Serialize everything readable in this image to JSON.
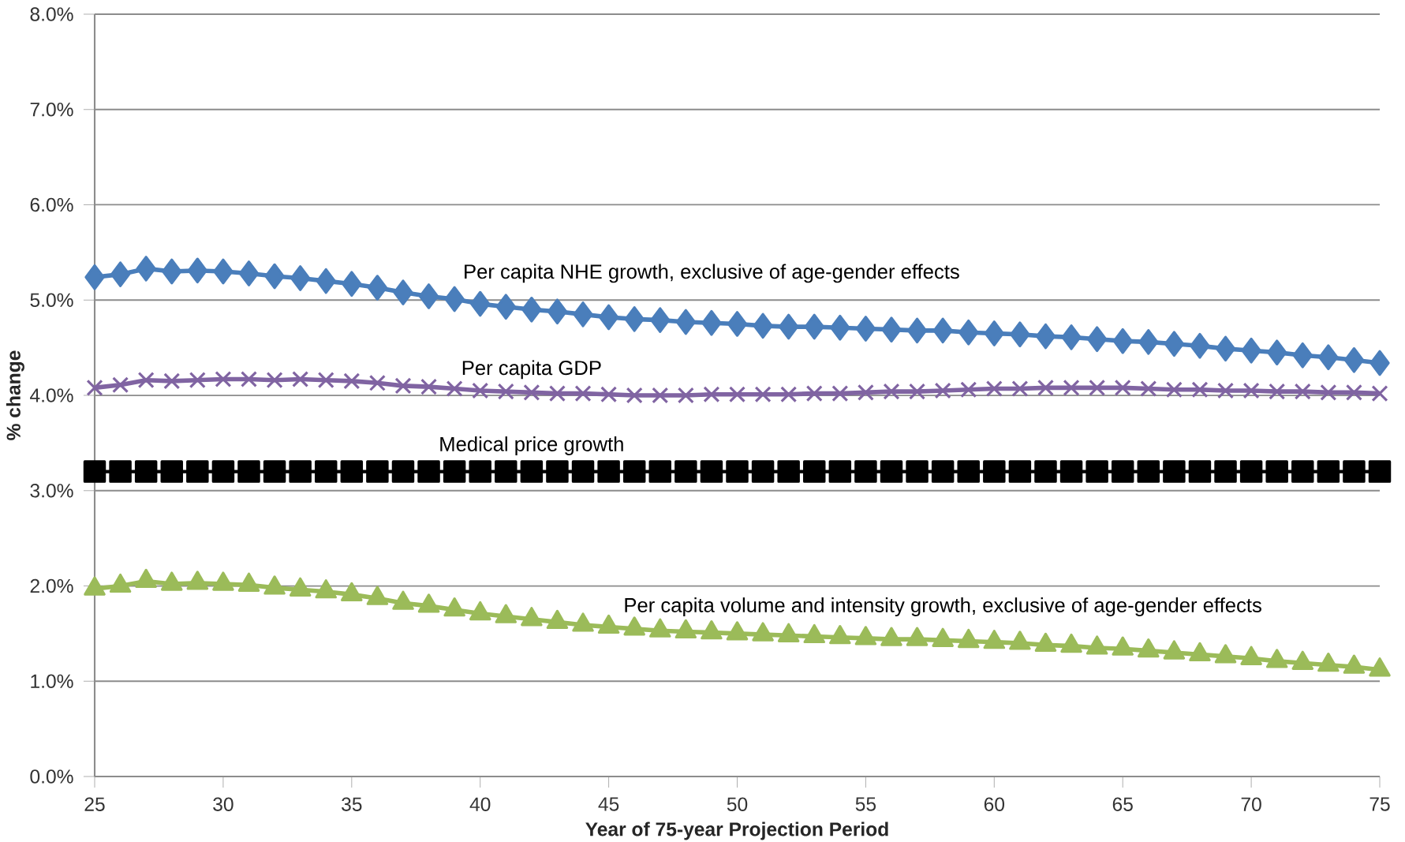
{
  "chart_data": {
    "type": "line",
    "xlabel": "Year of 75-year Projection Period",
    "ylabel": "% change",
    "x": [
      25,
      26,
      27,
      28,
      29,
      30,
      31,
      32,
      33,
      34,
      35,
      36,
      37,
      38,
      39,
      40,
      41,
      42,
      43,
      44,
      45,
      46,
      47,
      48,
      49,
      50,
      51,
      52,
      53,
      54,
      55,
      56,
      57,
      58,
      59,
      60,
      61,
      62,
      63,
      64,
      65,
      66,
      67,
      68,
      69,
      70,
      71,
      72,
      73,
      74,
      75
    ],
    "series": [
      {
        "name": "Per capita NHE growth, exclusive of age-gender effects",
        "color": "#4a7ebb",
        "marker": "diamond",
        "values": [
          5.24,
          5.27,
          5.33,
          5.3,
          5.31,
          5.3,
          5.28,
          5.25,
          5.23,
          5.2,
          5.17,
          5.13,
          5.08,
          5.04,
          5.01,
          4.96,
          4.93,
          4.9,
          4.88,
          4.85,
          4.82,
          4.8,
          4.79,
          4.77,
          4.76,
          4.75,
          4.73,
          4.72,
          4.72,
          4.71,
          4.7,
          4.69,
          4.68,
          4.68,
          4.66,
          4.65,
          4.64,
          4.62,
          4.61,
          4.59,
          4.57,
          4.56,
          4.54,
          4.52,
          4.49,
          4.47,
          4.45,
          4.42,
          4.4,
          4.37,
          4.34
        ]
      },
      {
        "name": "Per capita GDP",
        "color": "#8064a2",
        "marker": "cross",
        "values": [
          4.08,
          4.11,
          4.16,
          4.15,
          4.16,
          4.17,
          4.17,
          4.16,
          4.17,
          4.16,
          4.15,
          4.13,
          4.1,
          4.09,
          4.07,
          4.05,
          4.04,
          4.03,
          4.02,
          4.02,
          4.01,
          4.0,
          4.0,
          4.0,
          4.01,
          4.01,
          4.01,
          4.01,
          4.02,
          4.02,
          4.03,
          4.04,
          4.04,
          4.05,
          4.06,
          4.07,
          4.07,
          4.08,
          4.08,
          4.08,
          4.08,
          4.07,
          4.06,
          4.06,
          4.05,
          4.05,
          4.04,
          4.04,
          4.03,
          4.03,
          4.02
        ]
      },
      {
        "name": "Medical price growth",
        "color": "#000000",
        "marker": "square",
        "values": [
          3.2,
          3.2,
          3.2,
          3.2,
          3.2,
          3.2,
          3.2,
          3.2,
          3.2,
          3.2,
          3.2,
          3.2,
          3.2,
          3.2,
          3.2,
          3.2,
          3.2,
          3.2,
          3.2,
          3.2,
          3.2,
          3.2,
          3.2,
          3.2,
          3.2,
          3.2,
          3.2,
          3.2,
          3.2,
          3.2,
          3.2,
          3.2,
          3.2,
          3.2,
          3.2,
          3.2,
          3.2,
          3.2,
          3.2,
          3.2,
          3.2,
          3.2,
          3.2,
          3.2,
          3.2,
          3.2,
          3.2,
          3.2,
          3.2,
          3.2,
          3.2
        ]
      },
      {
        "name": "Per capita volume and intensity growth, exclusive of age-gender effects",
        "color": "#9bbb59",
        "marker": "triangle",
        "values": [
          1.97,
          2.0,
          2.05,
          2.02,
          2.03,
          2.02,
          2.01,
          1.98,
          1.96,
          1.94,
          1.91,
          1.87,
          1.82,
          1.79,
          1.75,
          1.71,
          1.68,
          1.65,
          1.62,
          1.59,
          1.57,
          1.55,
          1.53,
          1.52,
          1.51,
          1.5,
          1.49,
          1.48,
          1.47,
          1.46,
          1.45,
          1.44,
          1.44,
          1.43,
          1.42,
          1.41,
          1.4,
          1.38,
          1.37,
          1.35,
          1.34,
          1.32,
          1.3,
          1.28,
          1.26,
          1.24,
          1.21,
          1.19,
          1.17,
          1.15,
          1.12
        ]
      }
    ],
    "xlim": [
      25,
      75
    ],
    "xticks": [
      25,
      30,
      35,
      40,
      45,
      50,
      55,
      60,
      65,
      70,
      75
    ],
    "ylim": [
      0,
      8
    ],
    "yticks": [
      {
        "value": 0,
        "label": "0.0%"
      },
      {
        "value": 1,
        "label": "1.0%"
      },
      {
        "value": 2,
        "label": "2.0%"
      },
      {
        "value": 3,
        "label": "3.0%"
      },
      {
        "value": 4,
        "label": "4.0%"
      },
      {
        "value": 5,
        "label": "5.0%"
      },
      {
        "value": 6,
        "label": "6.0%"
      },
      {
        "value": 7,
        "label": "7.0%"
      },
      {
        "value": 8,
        "label": "8.0%"
      }
    ],
    "grid": "y",
    "line_style": "solid"
  }
}
